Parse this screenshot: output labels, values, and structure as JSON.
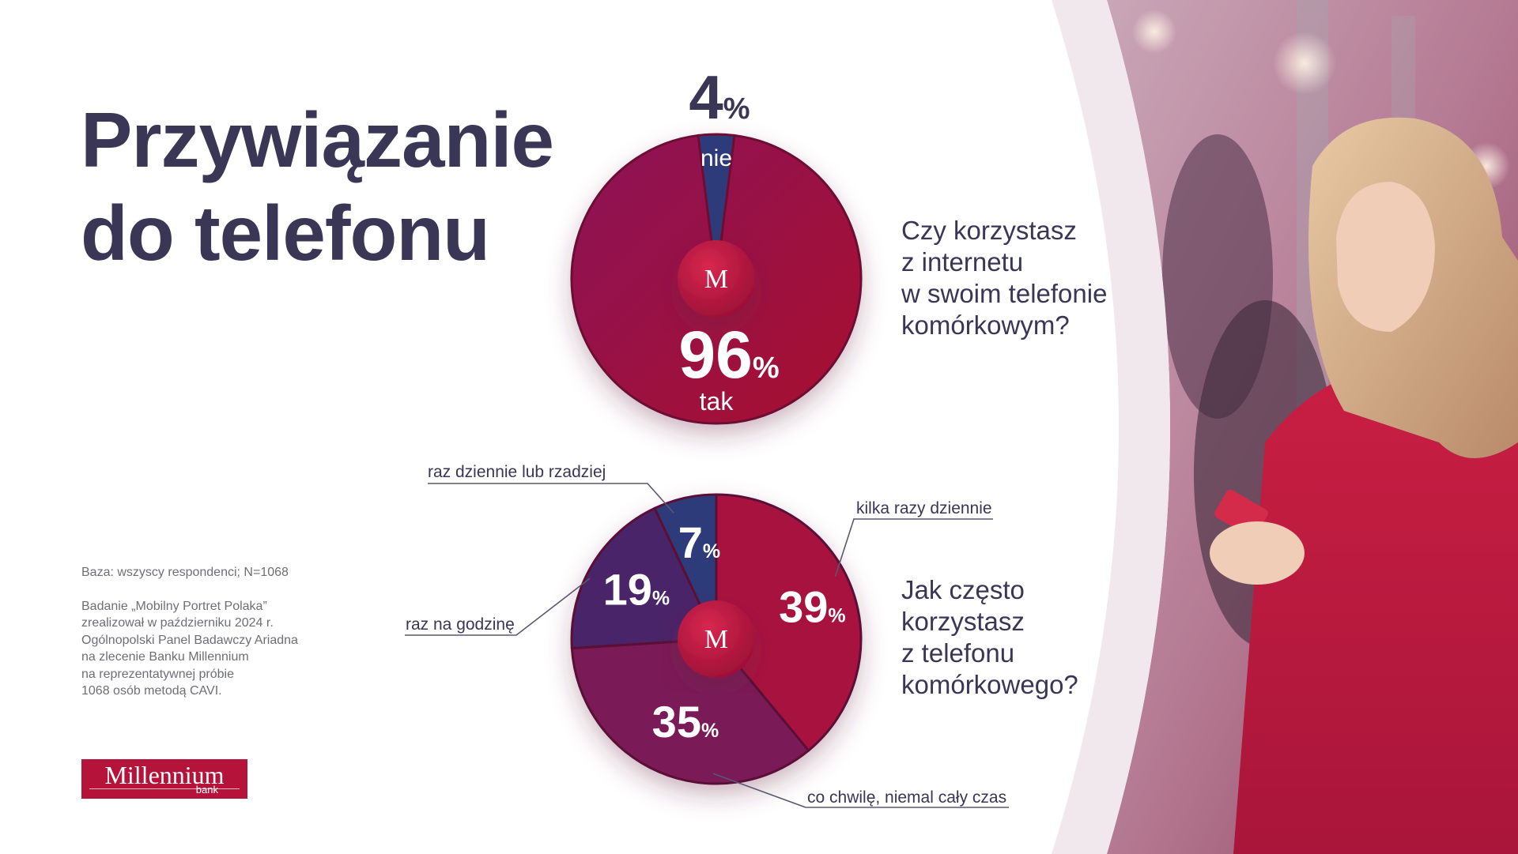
{
  "title": {
    "line1": "Przywiązanie",
    "line2": "do telefonu"
  },
  "colors": {
    "title": "#3a3656",
    "pie_red": "#a8123f",
    "pie_crimson": "#8e0f4f",
    "pie_purple": "#5a2466",
    "pie_navy": "#2e3b7a",
    "brand": "#b5133a"
  },
  "questions": {
    "q1": {
      "line1": "Czy korzystasz",
      "line2": "z internetu",
      "line3": "w swoim telefonie",
      "line4": "komórkowym?"
    },
    "q2": {
      "line1": "Jak często",
      "line2": "korzystasz",
      "line3": "z telefonu",
      "line4": "komórkowego?"
    }
  },
  "notes": {
    "base": "Baza: wszyscy respondenci; N=1068",
    "line1": "Badanie „Mobilny Portret Polaka”",
    "line2": "zrealizował w październiku 2024 r.",
    "line3": "Ogólnopolski Panel Badawczy Ariadna",
    "line4": "na zlecenie Banku Millennium",
    "line5": "na reprezentatywnej próbie",
    "line6": "1068 osób metodą CAVI."
  },
  "logo": {
    "name": "Millennium",
    "sub": "bank",
    "center_mark": "M"
  },
  "chart_data": [
    {
      "type": "pie",
      "categories": [
        "tak",
        "nie"
      ],
      "values": [
        96,
        4
      ],
      "value_labels": [
        "96",
        "4"
      ],
      "unit": "%"
    },
    {
      "type": "pie",
      "categories": [
        "kilka razy dziennie",
        "co chwilę, niemal cały czas",
        "raz na godzinę",
        "raz dziennie lub rzadziej"
      ],
      "values": [
        39,
        35,
        19,
        7
      ],
      "value_labels": [
        "39",
        "35",
        "19",
        "7"
      ],
      "unit": "%"
    }
  ]
}
